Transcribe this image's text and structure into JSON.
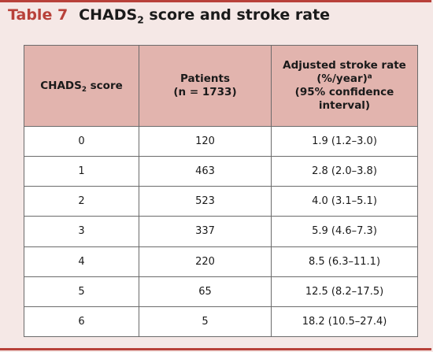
{
  "caption": {
    "label": "Table 7",
    "title_main": "CHADS",
    "title_sub": "2",
    "title_rest": " score and stroke rate"
  },
  "table": {
    "headers": {
      "score": {
        "main": "CHADS",
        "sub": "2",
        "rest": " score"
      },
      "patients": {
        "line1": "Patients",
        "line2": "(n = 1733)"
      },
      "rate": {
        "line1": "Adjusted stroke rate",
        "line2_main": "(%/year)",
        "line2_sup": "a",
        "line3": "(95% confidence",
        "line4": "interval)"
      }
    },
    "rows": [
      {
        "score": "0",
        "patients": "120",
        "rate": "1.9 (1.2–3.0)"
      },
      {
        "score": "1",
        "patients": "463",
        "rate": "2.8 (2.0–3.8)"
      },
      {
        "score": "2",
        "patients": "523",
        "rate": "4.0 (3.1–5.1)"
      },
      {
        "score": "3",
        "patients": "337",
        "rate": "5.9 (4.6–7.3)"
      },
      {
        "score": "4",
        "patients": "220",
        "rate": "8.5 (6.3–11.1)"
      },
      {
        "score": "5",
        "patients": "65",
        "rate": "12.5 (8.2–17.5)"
      },
      {
        "score": "6",
        "patients": "5",
        "rate": "18.2 (10.5–27.4)"
      }
    ]
  },
  "colors": {
    "accent": "#b8413a",
    "header_bg": "#e2b4ae",
    "page_bg": "#f5e8e6"
  }
}
